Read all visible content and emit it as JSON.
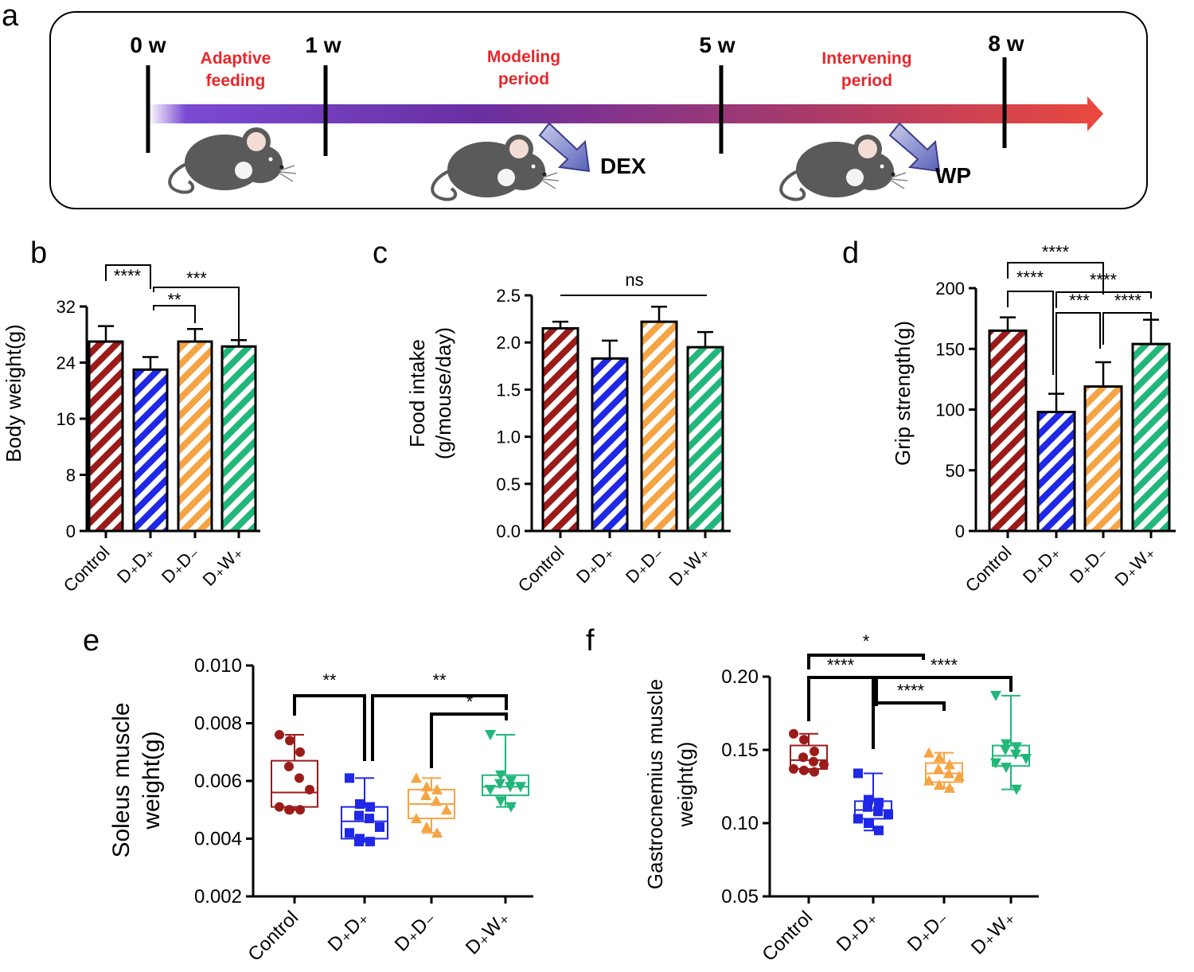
{
  "colors": {
    "control": "#9b1b1b",
    "dd": "#1f28e6",
    "dminus": "#f5a443",
    "dw": "#22b77a"
  },
  "panel_labels": {
    "a": "a",
    "b": "b",
    "c": "c",
    "d": "d",
    "e": "e",
    "f": "f"
  },
  "timeline": {
    "weeks": [
      "0 w",
      "1 w",
      "5 w",
      "8 w"
    ],
    "phase1": [
      "Adaptive",
      "feeding"
    ],
    "phase2": [
      "Modeling",
      "period"
    ],
    "phase3": [
      "Intervening",
      "period"
    ],
    "treat1": "DEX",
    "treat2": "WP"
  },
  "chart_data": [
    {
      "id": "b",
      "type": "bar",
      "ylabel": "Body weight(g)",
      "ylim": [
        0,
        32
      ],
      "yticks": [
        "0",
        "8",
        "16",
        "24",
        "32"
      ],
      "categories": [
        "Control",
        "D₊D₊",
        "D₊D₋",
        "D₊W₊"
      ],
      "values": [
        27.0,
        23.0,
        27.0,
        26.3
      ],
      "errors": [
        2.2,
        1.8,
        1.8,
        0.9
      ],
      "significance": [
        "****",
        "**",
        "***"
      ]
    },
    {
      "id": "c",
      "type": "bar",
      "ylabel": "Food intake",
      "ylabel2": "(g/mouse/day)",
      "ylim": [
        0,
        2.5
      ],
      "yticks": [
        "0.0",
        "0.5",
        "1.0",
        "1.5",
        "2.0",
        "2.5"
      ],
      "categories": [
        "Control",
        "D₊D₊",
        "D₊D₋",
        "D₊W₊"
      ],
      "values": [
        2.15,
        1.83,
        2.22,
        1.95
      ],
      "errors": [
        0.07,
        0.19,
        0.16,
        0.16
      ],
      "significance": [
        "ns"
      ]
    },
    {
      "id": "d",
      "type": "bar",
      "ylabel": "Grip strength(g)",
      "ylim": [
        0,
        200
      ],
      "yticks": [
        "0",
        "50",
        "100",
        "150",
        "200"
      ],
      "categories": [
        "Control",
        "D₊D₊",
        "D₊D₋",
        "D₊W₊"
      ],
      "values": [
        165,
        98,
        119,
        154
      ],
      "errors": [
        11,
        15,
        20,
        20
      ],
      "significance": [
        "****",
        "****",
        "****",
        "***",
        "****"
      ]
    },
    {
      "id": "e",
      "type": "box",
      "ylabel": "Soleus muscle",
      "ylabel2": "weight(g)",
      "ylim": [
        0.002,
        0.01
      ],
      "yticks": [
        "0.002",
        "0.004",
        "0.006",
        "0.008",
        "0.010"
      ],
      "categories": [
        "Control",
        "D₊D₊",
        "D₊D₋",
        "D₊W₊"
      ],
      "boxes": [
        {
          "min": 0.005,
          "q1": 0.0051,
          "median": 0.0056,
          "q3": 0.0067,
          "max": 0.0076,
          "points": [
            0.0076,
            0.0074,
            0.007,
            0.0065,
            0.0061,
            0.0057,
            0.0051,
            0.005,
            0.005,
            0.005
          ]
        },
        {
          "min": 0.0039,
          "q1": 0.004,
          "median": 0.0046,
          "q3": 0.0051,
          "max": 0.0061,
          "points": [
            0.0061,
            0.0052,
            0.0051,
            0.0048,
            0.0047,
            0.0044,
            0.0042,
            0.004,
            0.0039,
            0.0039
          ]
        },
        {
          "min": 0.0042,
          "q1": 0.0047,
          "median": 0.0052,
          "q3": 0.0057,
          "max": 0.0061,
          "points": [
            0.0061,
            0.0058,
            0.0057,
            0.0055,
            0.0053,
            0.005,
            0.0047,
            0.0044,
            0.0042
          ]
        },
        {
          "min": 0.0051,
          "q1": 0.0055,
          "median": 0.0058,
          "q3": 0.0062,
          "max": 0.0076,
          "points": [
            0.0076,
            0.0062,
            0.006,
            0.0059,
            0.0058,
            0.0058,
            0.0057,
            0.0053,
            0.0051
          ]
        }
      ],
      "significance": [
        "**",
        "**",
        "*"
      ]
    },
    {
      "id": "f",
      "type": "box",
      "ylabel": "Gastrocnemius muscle",
      "ylabel2": "weight(g)",
      "ylim": [
        0.05,
        0.2
      ],
      "yticks": [
        "0.05",
        "0.10",
        "0.15",
        "0.20"
      ],
      "categories": [
        "Control",
        "D₊D₊",
        "D₊D₋",
        "D₊W₊"
      ],
      "boxes": [
        {
          "min": 0.135,
          "q1": 0.137,
          "median": 0.143,
          "q3": 0.153,
          "max": 0.161,
          "points": [
            0.161,
            0.157,
            0.149,
            0.145,
            0.142,
            0.14,
            0.137,
            0.136,
            0.135
          ]
        },
        {
          "min": 0.095,
          "q1": 0.103,
          "median": 0.109,
          "q3": 0.115,
          "max": 0.134,
          "points": [
            0.134,
            0.116,
            0.114,
            0.111,
            0.108,
            0.106,
            0.103,
            0.1,
            0.095
          ]
        },
        {
          "min": 0.124,
          "q1": 0.128,
          "median": 0.134,
          "q3": 0.141,
          "max": 0.148,
          "points": [
            0.148,
            0.145,
            0.14,
            0.137,
            0.134,
            0.132,
            0.129,
            0.126,
            0.124
          ]
        },
        {
          "min": 0.123,
          "q1": 0.139,
          "median": 0.146,
          "q3": 0.153,
          "max": 0.187,
          "points": [
            0.187,
            0.154,
            0.152,
            0.15,
            0.147,
            0.144,
            0.141,
            0.138,
            0.123
          ]
        }
      ],
      "significance": [
        "*",
        "****",
        "****",
        "****"
      ]
    }
  ]
}
